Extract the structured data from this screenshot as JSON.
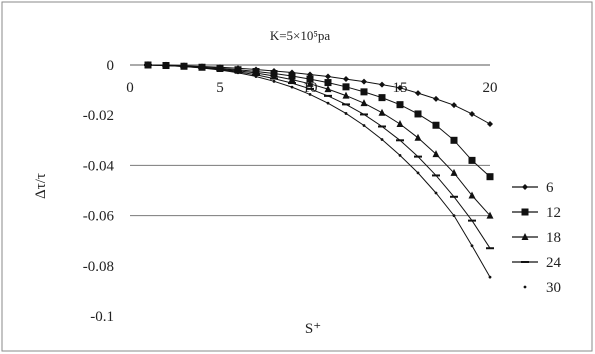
{
  "chart_data": {
    "type": "line",
    "title": "K=5×10⁵pa",
    "xlabel": "S⁺",
    "ylabel": "Δτ/τ",
    "xlim": [
      0,
      20
    ],
    "ylim": [
      -0.1,
      0
    ],
    "x_ticks": [
      "0",
      "5",
      "10",
      "15",
      "20"
    ],
    "y_ticks": [
      "0",
      "-0.02",
      "-0.04",
      "-0.06",
      "-0.08",
      "-0.1"
    ],
    "y_tick_values": [
      0,
      -0.02,
      -0.04,
      -0.06,
      -0.08,
      -0.1
    ],
    "x_tick_values": [
      0,
      5,
      10,
      15,
      20
    ],
    "gridlines_y": [
      -0.04,
      -0.06
    ],
    "legend_position": "right",
    "x": [
      1,
      2,
      3,
      4,
      5,
      6,
      7,
      8,
      9,
      10,
      11,
      12,
      13,
      14,
      15,
      16,
      17,
      18,
      19,
      20
    ],
    "series": [
      {
        "name": "6",
        "marker": "diamond",
        "values": [
          0,
          0,
          -0.0003,
          -0.0006,
          -0.0009,
          -0.0013,
          -0.0018,
          -0.0024,
          -0.003,
          -0.0038,
          -0.0046,
          -0.0056,
          -0.0066,
          -0.0078,
          -0.0091,
          -0.0112,
          -0.0135,
          -0.016,
          -0.0195,
          -0.0235
        ]
      },
      {
        "name": "12",
        "marker": "square",
        "values": [
          0,
          -0.0002,
          -0.0005,
          -0.0009,
          -0.0013,
          -0.0019,
          -0.0026,
          -0.0034,
          -0.0044,
          -0.0056,
          -0.007,
          -0.0087,
          -0.0107,
          -0.013,
          -0.0158,
          -0.0195,
          -0.024,
          -0.03,
          -0.038,
          -0.0445
        ]
      },
      {
        "name": "18",
        "marker": "triangle",
        "values": [
          0,
          -0.0002,
          -0.0005,
          -0.001,
          -0.0016,
          -0.0023,
          -0.0032,
          -0.0044,
          -0.0058,
          -0.0075,
          -0.0096,
          -0.0122,
          -0.0152,
          -0.019,
          -0.0235,
          -0.029,
          -0.0355,
          -0.043,
          -0.052,
          -0.06
        ]
      },
      {
        "name": "24",
        "marker": "dash",
        "values": [
          0,
          -0.0002,
          -0.0006,
          -0.0011,
          -0.0018,
          -0.0027,
          -0.0039,
          -0.0054,
          -0.0072,
          -0.0095,
          -0.0123,
          -0.0157,
          -0.0197,
          -0.0245,
          -0.03,
          -0.0365,
          -0.044,
          -0.0525,
          -0.062,
          -0.073
        ]
      },
      {
        "name": "30",
        "marker": "dot",
        "values": [
          0,
          -0.0002,
          -0.0006,
          -0.0012,
          -0.002,
          -0.0031,
          -0.0046,
          -0.0065,
          -0.0088,
          -0.0117,
          -0.0152,
          -0.0193,
          -0.0241,
          -0.0297,
          -0.036,
          -0.043,
          -0.051,
          -0.06,
          -0.072,
          -0.0845
        ]
      }
    ]
  }
}
